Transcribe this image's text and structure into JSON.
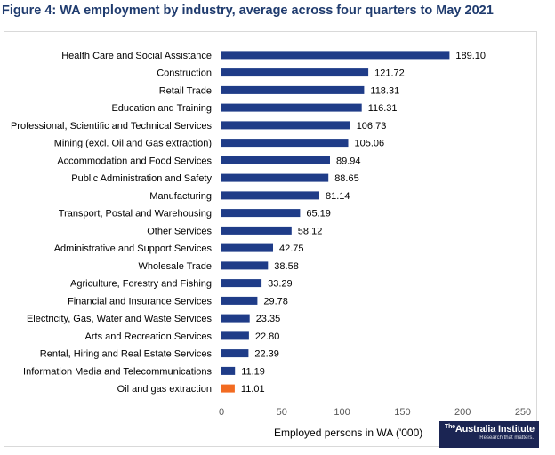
{
  "figure": {
    "title": "Figure 4: WA employment by industry, average across four quarters to May 2021"
  },
  "logo": {
    "prefix": "The",
    "name": "Australia Institute",
    "tagline": "Research that matters."
  },
  "chart_data": {
    "type": "bar",
    "orientation": "horizontal",
    "title": "Figure 4: WA employment by industry, average across four quarters to May 2021",
    "xlabel": "Employed persons in WA ('000)",
    "ylabel": "",
    "xlim": [
      0,
      250
    ],
    "xticks": [
      0,
      50,
      100,
      150,
      200,
      250
    ],
    "grid": false,
    "legend": "none",
    "colors": {
      "default": "#1f3c88",
      "highlight": "#f26b21"
    },
    "categories": [
      "Health Care and Social Assistance",
      "Construction",
      "Retail Trade",
      "Education and Training",
      "Professional, Scientific and Technical Services",
      "Mining (excl. Oil and Gas extraction)",
      "Accommodation and Food Services",
      "Public Administration and Safety",
      "Manufacturing",
      "Transport, Postal and Warehousing",
      "Other Services",
      "Administrative and Support Services",
      "Wholesale Trade",
      "Agriculture, Forestry and Fishing",
      "Financial and Insurance Services",
      "Electricity, Gas, Water and Waste Services",
      "Arts and Recreation Services",
      "Rental, Hiring and Real Estate Services",
      "Information Media and Telecommunications",
      "Oil and gas extraction"
    ],
    "values": [
      189.1,
      121.72,
      118.31,
      116.31,
      106.73,
      105.06,
      89.94,
      88.65,
      81.14,
      65.19,
      58.12,
      42.75,
      38.58,
      33.29,
      29.78,
      23.35,
      22.8,
      22.39,
      11.19,
      11.01
    ],
    "value_labels": [
      "189.10",
      "121.72",
      "118.31",
      "116.31",
      "106.73",
      "105.06",
      "89.94",
      "88.65",
      "81.14",
      "65.19",
      "58.12",
      "42.75",
      "38.58",
      "33.29",
      "29.78",
      "23.35",
      "22.80",
      "22.39",
      "11.19",
      "11.01"
    ],
    "highlighted_category": "Oil and gas extraction"
  }
}
